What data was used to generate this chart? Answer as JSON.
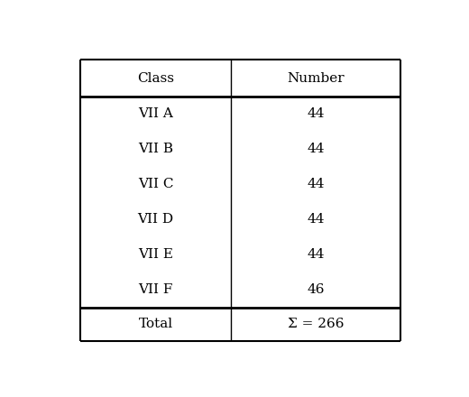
{
  "col_headers": [
    "Class",
    "Number"
  ],
  "rows": [
    [
      "VII A",
      "44"
    ],
    [
      "VII B",
      "44"
    ],
    [
      "VII C",
      "44"
    ],
    [
      "VII D",
      "44"
    ],
    [
      "VII E",
      "44"
    ],
    [
      "VII F",
      "46"
    ]
  ],
  "total_row": [
    "Total",
    "Σ = 266"
  ],
  "background_color": "#ffffff",
  "border_color": "#000000",
  "text_color": "#000000",
  "font_size": 11,
  "header_font_size": 11,
  "fig_width": 5.2,
  "fig_height": 4.4
}
